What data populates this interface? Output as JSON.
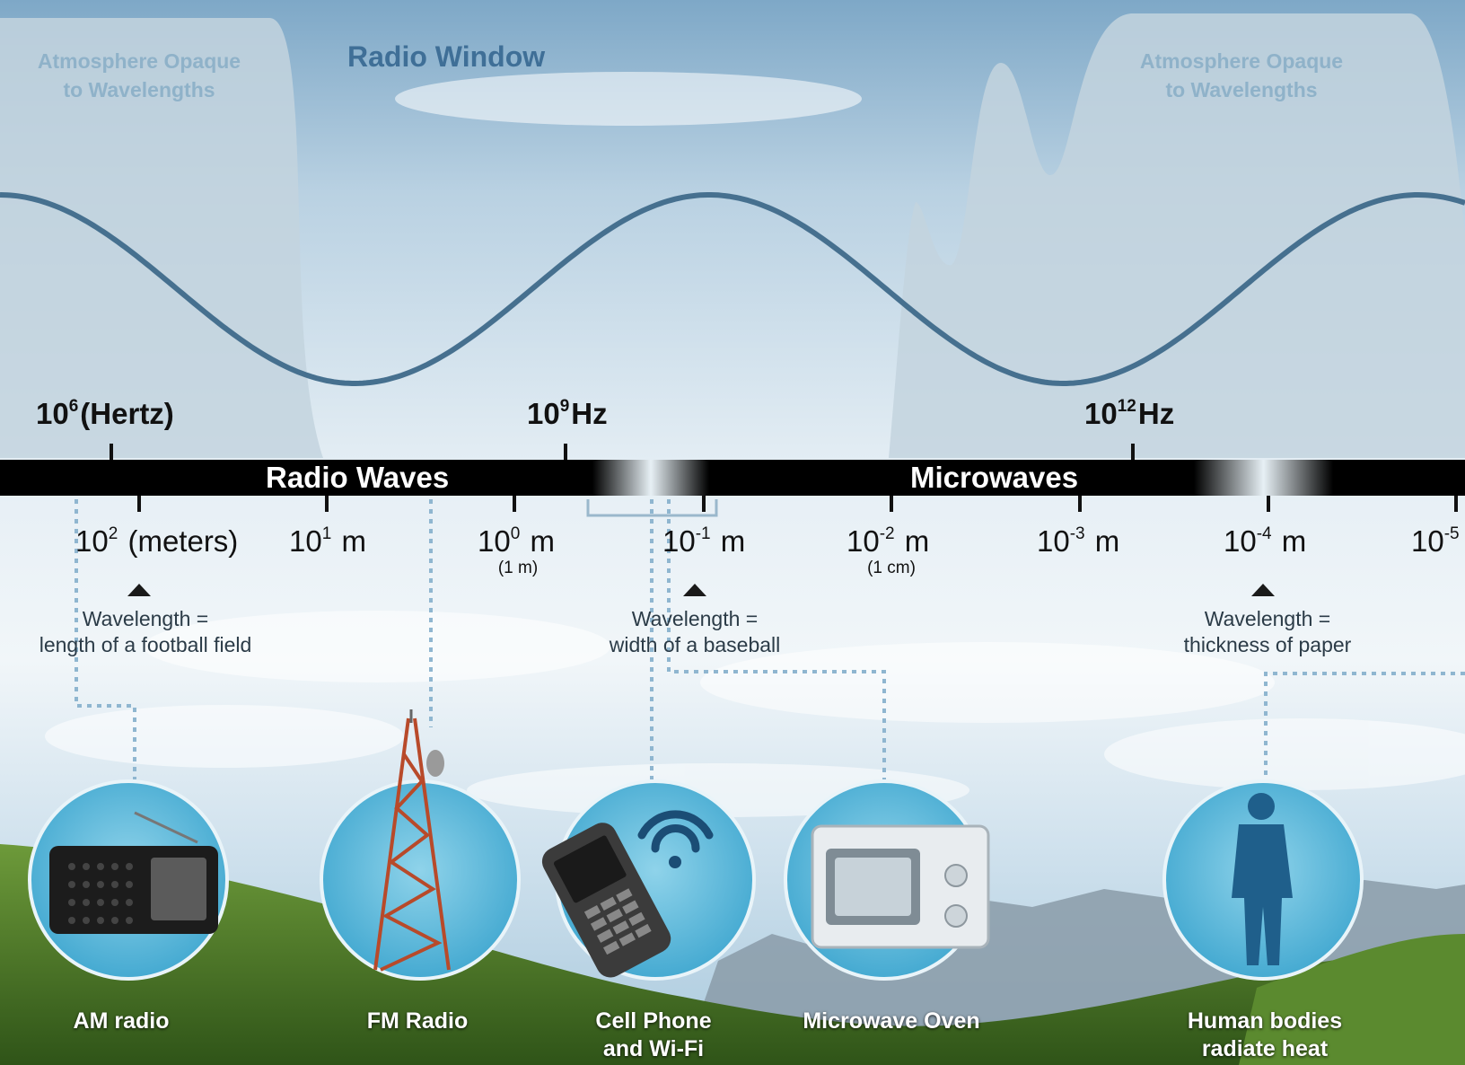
{
  "colors": {
    "sky_top": "#7fa9c8",
    "sky_mid": "#cfe0ec",
    "wave": "#46708f",
    "opaque_region": "#c5d5df",
    "spectrum_bar": "#000000",
    "circle": "#5db8d9",
    "hills": "#4b7a2c"
  },
  "header": {
    "opaque_left_line1": "Atmosphere Opaque",
    "opaque_left_line2": "to Wavelengths",
    "radio_window": "Radio Window",
    "opaque_right_line1": "Atmosphere Opaque",
    "opaque_right_line2": "to Wavelengths"
  },
  "frequency_scale": [
    {
      "base": "10",
      "exp": "6",
      "unit": "(Hertz)"
    },
    {
      "base": "10",
      "exp": "9",
      "unit": "Hz"
    },
    {
      "base": "10",
      "exp": "12",
      "unit": "Hz"
    }
  ],
  "bands": [
    {
      "label": "Radio Waves"
    },
    {
      "label": "Microwaves"
    }
  ],
  "wavelength_scale": [
    {
      "base": "10",
      "exp": "2",
      "unit": "(meters)",
      "note": ""
    },
    {
      "base": "10",
      "exp": "1",
      "unit": "m",
      "note": ""
    },
    {
      "base": "10",
      "exp": "0",
      "unit": "m",
      "note": "(1 m)"
    },
    {
      "base": "10",
      "exp": "-1",
      "unit": "m",
      "note": ""
    },
    {
      "base": "10",
      "exp": "-2",
      "unit": "m",
      "note": "(1 cm)"
    },
    {
      "base": "10",
      "exp": "-3",
      "unit": "m",
      "note": ""
    },
    {
      "base": "10",
      "exp": "-4",
      "unit": "m",
      "note": ""
    },
    {
      "base": "10",
      "exp": "-5",
      "unit": "",
      "note": ""
    }
  ],
  "comparisons": [
    {
      "line1": "Wavelength =",
      "line2": "length of a football field"
    },
    {
      "line1": "Wavelength =",
      "line2": "width of a baseball"
    },
    {
      "line1": "Wavelength =",
      "line2": "thickness of paper"
    }
  ],
  "applications": [
    {
      "line1": "AM radio",
      "line2": "",
      "icon": "am-radio-icon"
    },
    {
      "line1": "FM Radio",
      "line2": "",
      "icon": "radio-tower-icon"
    },
    {
      "line1": "Cell Phone",
      "line2": "and Wi-Fi",
      "icon": "cell-phone-wifi-icon"
    },
    {
      "line1": "Microwave Oven",
      "line2": "",
      "icon": "microwave-oven-icon"
    },
    {
      "line1": "Human bodies",
      "line2": "radiate heat",
      "icon": "human-figure-icon"
    }
  ]
}
